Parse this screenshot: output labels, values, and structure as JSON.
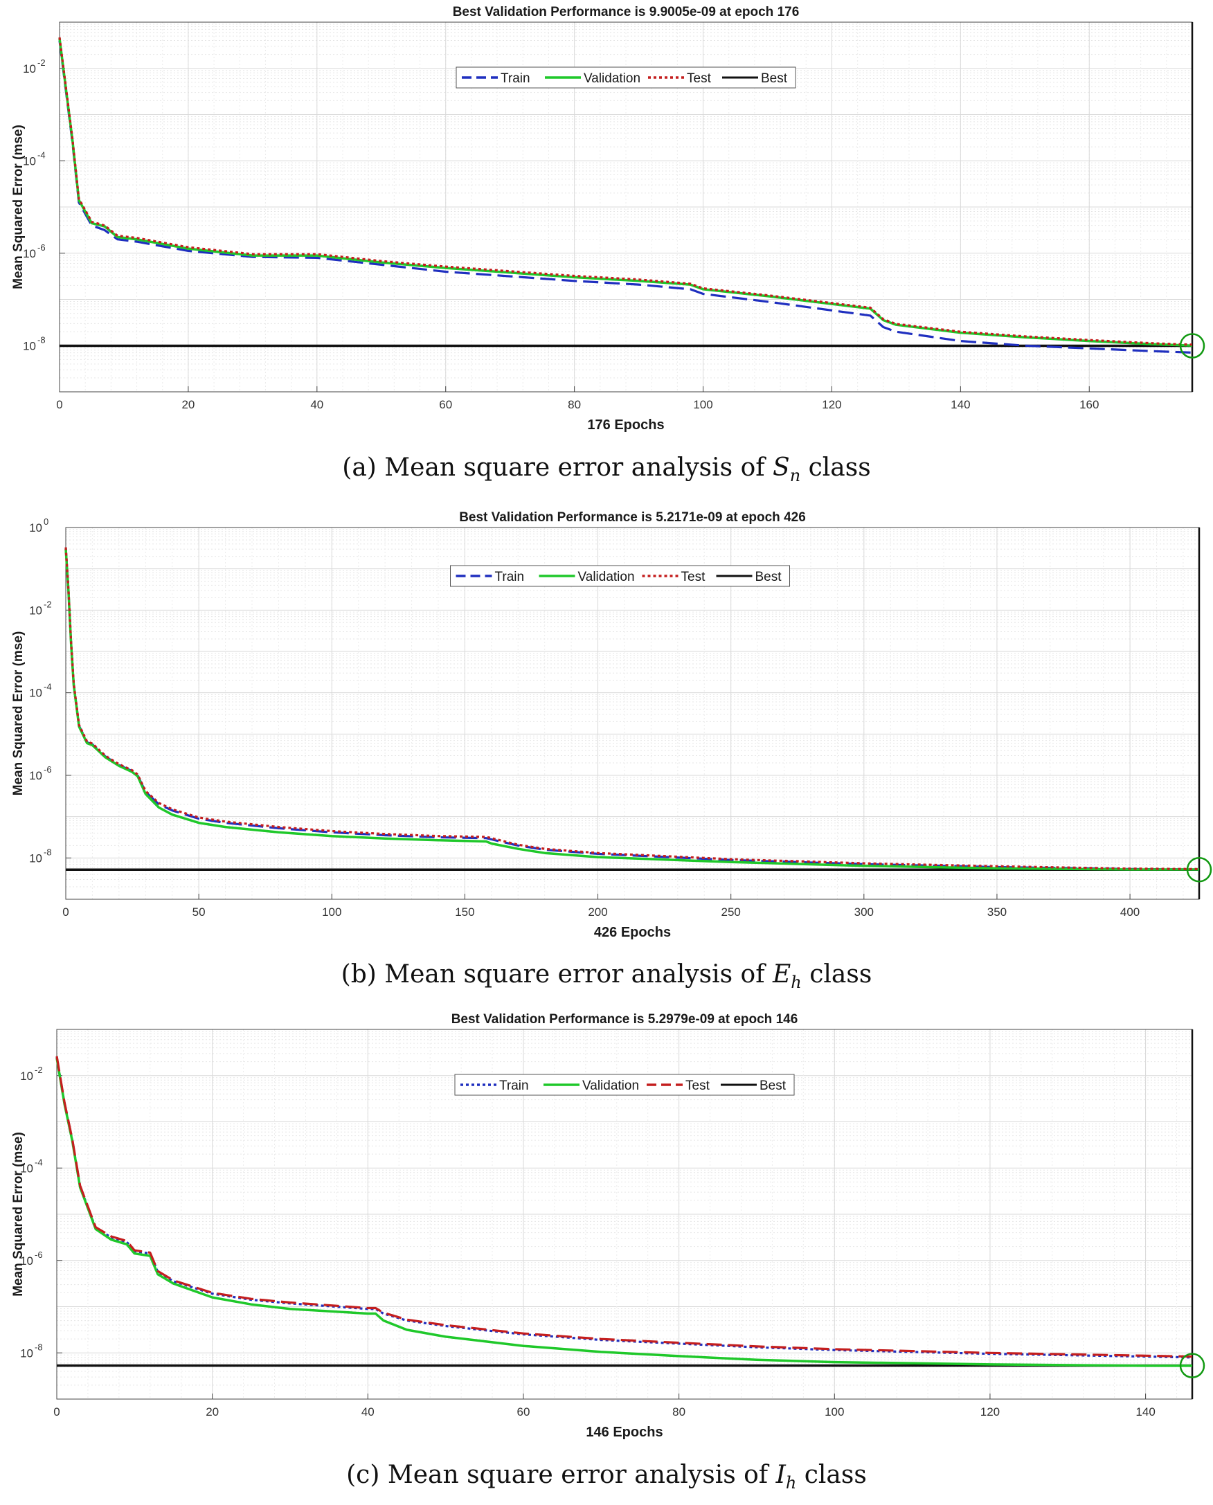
{
  "chart_data": [
    {
      "type": "line",
      "title": "Best Validation Performance is 9.9005e-09 at epoch 176",
      "xlabel": "176 Epochs",
      "ylabel": "Mean Squared Error  (mse)",
      "caption": {
        "prefix": "(a)  Mean square error analysis of",
        "var": "S",
        "sub": "n",
        "suffix": "class"
      },
      "xlim": [
        0,
        176
      ],
      "ylim_log10": [
        -9,
        -1
      ],
      "xticks": [
        0,
        20,
        40,
        60,
        80,
        100,
        120,
        140,
        160
      ],
      "yticks": [
        {
          "exp": -2,
          "label": "10",
          "sup": "-2"
        },
        {
          "exp": -4,
          "label": "10",
          "sup": "-4"
        },
        {
          "exp": -6,
          "label": "10",
          "sup": "-6"
        },
        {
          "exp": -8,
          "label": "10",
          "sup": "-8"
        }
      ],
      "best": {
        "epoch": 176,
        "value": 9.9005e-09
      },
      "legend": [
        "Train",
        "Validation",
        "Test",
        "Best"
      ],
      "series": [
        {
          "name": "Train",
          "color": "#1f2fbf",
          "dash": "dashed",
          "x": [
            0,
            1,
            2,
            3,
            5,
            7,
            9,
            12,
            20,
            30,
            40,
            50,
            60,
            70,
            80,
            90,
            98,
            100,
            110,
            126,
            128,
            130,
            140,
            150,
            160,
            170,
            176
          ],
          "log10": [
            -1.4,
            -2.5,
            -3.6,
            -4.9,
            -5.4,
            -5.5,
            -5.7,
            -5.75,
            -5.95,
            -6.08,
            -6.1,
            -6.25,
            -6.4,
            -6.5,
            -6.6,
            -6.68,
            -6.78,
            -6.88,
            -7.05,
            -7.35,
            -7.6,
            -7.7,
            -7.9,
            -8.0,
            -8.06,
            -8.12,
            -8.15
          ]
        },
        {
          "name": "Validation",
          "color": "#1fc82a",
          "dash": "solid",
          "x": [
            0,
            1,
            2,
            3,
            5,
            7,
            9,
            12,
            20,
            30,
            40,
            50,
            60,
            70,
            80,
            90,
            98,
            100,
            110,
            126,
            128,
            130,
            140,
            150,
            160,
            170,
            176
          ],
          "log10": [
            -1.35,
            -2.45,
            -3.55,
            -4.85,
            -5.35,
            -5.42,
            -5.65,
            -5.7,
            -5.9,
            -6.05,
            -6.05,
            -6.2,
            -6.32,
            -6.42,
            -6.52,
            -6.6,
            -6.68,
            -6.78,
            -6.93,
            -7.2,
            -7.45,
            -7.55,
            -7.72,
            -7.82,
            -7.9,
            -7.97,
            -8.0
          ]
        },
        {
          "name": "Test",
          "color": "#c41e1e",
          "dash": "dotted",
          "x": [
            0,
            1,
            2,
            3,
            5,
            7,
            9,
            12,
            20,
            30,
            40,
            50,
            60,
            70,
            80,
            90,
            98,
            100,
            110,
            126,
            128,
            130,
            140,
            150,
            160,
            170,
            176
          ],
          "log10": [
            -1.33,
            -2.42,
            -3.52,
            -4.82,
            -5.32,
            -5.4,
            -5.62,
            -5.67,
            -5.87,
            -6.02,
            -6.02,
            -6.17,
            -6.29,
            -6.39,
            -6.49,
            -6.57,
            -6.66,
            -6.76,
            -6.91,
            -7.18,
            -7.43,
            -7.53,
            -7.7,
            -7.8,
            -7.88,
            -7.95,
            -7.98
          ]
        }
      ]
    },
    {
      "type": "line",
      "title": "Best Validation Performance is 5.2171e-09 at epoch 426",
      "xlabel": "426 Epochs",
      "ylabel": "Mean Squared Error  (mse)",
      "caption": {
        "prefix": "(b)  Mean square error analysis of",
        "var": "E",
        "sub": "h",
        "suffix": "class"
      },
      "xlim": [
        0,
        426
      ],
      "ylim_log10": [
        -9,
        0
      ],
      "xticks": [
        0,
        50,
        100,
        150,
        200,
        250,
        300,
        350,
        400
      ],
      "yticks": [
        {
          "exp": 0,
          "label": "10",
          "sup": "0"
        },
        {
          "exp": -2,
          "label": "10",
          "sup": "-2"
        },
        {
          "exp": -4,
          "label": "10",
          "sup": "-4"
        },
        {
          "exp": -6,
          "label": "10",
          "sup": "-6"
        },
        {
          "exp": -8,
          "label": "10",
          "sup": "-8"
        }
      ],
      "best": {
        "epoch": 426,
        "value": 5.2171e-09
      },
      "legend": [
        "Train",
        "Validation",
        "Test",
        "Best"
      ],
      "series": [
        {
          "name": "Train",
          "color": "#1f2fbf",
          "dash": "dashed",
          "x": [
            0,
            1,
            2,
            3,
            5,
            8,
            10,
            15,
            20,
            25,
            27,
            30,
            35,
            40,
            50,
            60,
            80,
            100,
            120,
            140,
            158,
            160,
            170,
            180,
            200,
            250,
            300,
            350,
            400,
            426
          ],
          "log10": [
            -0.5,
            -1.5,
            -2.8,
            -3.8,
            -4.8,
            -5.2,
            -5.25,
            -5.55,
            -5.75,
            -5.9,
            -6.0,
            -6.4,
            -6.7,
            -6.85,
            -7.05,
            -7.15,
            -7.28,
            -7.38,
            -7.45,
            -7.5,
            -7.52,
            -7.55,
            -7.7,
            -7.8,
            -7.9,
            -8.05,
            -8.15,
            -8.22,
            -8.27,
            -8.28
          ]
        },
        {
          "name": "Validation",
          "color": "#1fc82a",
          "dash": "solid",
          "x": [
            0,
            1,
            2,
            3,
            5,
            8,
            10,
            15,
            20,
            25,
            27,
            30,
            35,
            40,
            50,
            60,
            80,
            100,
            120,
            140,
            158,
            160,
            170,
            180,
            200,
            250,
            300,
            350,
            400,
            426
          ],
          "log10": [
            -0.52,
            -1.52,
            -2.82,
            -3.82,
            -4.82,
            -5.22,
            -5.27,
            -5.57,
            -5.77,
            -5.92,
            -6.02,
            -6.45,
            -6.78,
            -6.95,
            -7.15,
            -7.25,
            -7.38,
            -7.47,
            -7.53,
            -7.57,
            -7.6,
            -7.65,
            -7.78,
            -7.88,
            -7.98,
            -8.1,
            -8.19,
            -8.25,
            -8.28,
            -8.28
          ]
        },
        {
          "name": "Test",
          "color": "#c41e1e",
          "dash": "dotted",
          "x": [
            0,
            1,
            2,
            3,
            5,
            8,
            10,
            15,
            20,
            25,
            27,
            30,
            35,
            40,
            50,
            60,
            80,
            100,
            120,
            140,
            158,
            160,
            170,
            180,
            200,
            250,
            300,
            350,
            400,
            426
          ],
          "log10": [
            -0.48,
            -1.48,
            -2.78,
            -3.78,
            -4.78,
            -5.18,
            -5.23,
            -5.53,
            -5.73,
            -5.88,
            -5.98,
            -6.38,
            -6.67,
            -6.82,
            -7.02,
            -7.12,
            -7.25,
            -7.35,
            -7.42,
            -7.47,
            -7.49,
            -7.52,
            -7.68,
            -7.78,
            -7.88,
            -8.03,
            -8.13,
            -8.2,
            -8.26,
            -8.27
          ]
        }
      ]
    },
    {
      "type": "line",
      "title": "Best Validation Performance is 5.2979e-09 at epoch 146",
      "xlabel": "146 Epochs",
      "ylabel": "Mean Squared Error  (mse)",
      "caption": {
        "prefix": "(c)  Mean square error analysis of",
        "var": "I",
        "sub": "h",
        "suffix": "class"
      },
      "xlim": [
        0,
        146
      ],
      "ylim_log10": [
        -9,
        -1
      ],
      "xticks": [
        0,
        20,
        40,
        60,
        80,
        100,
        120,
        140
      ],
      "yticks": [
        {
          "exp": -2,
          "label": "10",
          "sup": "-2"
        },
        {
          "exp": -4,
          "label": "10",
          "sup": "-4"
        },
        {
          "exp": -6,
          "label": "10",
          "sup": "-6"
        },
        {
          "exp": -8,
          "label": "10",
          "sup": "-8"
        }
      ],
      "best": {
        "epoch": 146,
        "value": 5.2979e-09
      },
      "legend": [
        "Train",
        "Validation",
        "Test",
        "Best"
      ],
      "series": [
        {
          "name": "Train",
          "color": "#1f2fbf",
          "dash": "dotted",
          "x": [
            0,
            1,
            2,
            3,
            5,
            7,
            9,
            10,
            12,
            13,
            15,
            20,
            25,
            30,
            40,
            41,
            42,
            45,
            50,
            60,
            70,
            80,
            90,
            100,
            120,
            140,
            146
          ],
          "log10": [
            -1.6,
            -2.6,
            -3.4,
            -4.4,
            -5.3,
            -5.5,
            -5.6,
            -5.8,
            -5.85,
            -6.25,
            -6.45,
            -6.72,
            -6.85,
            -6.93,
            -7.05,
            -7.05,
            -7.15,
            -7.3,
            -7.42,
            -7.6,
            -7.72,
            -7.8,
            -7.88,
            -7.94,
            -8.02,
            -8.08,
            -8.1
          ]
        },
        {
          "name": "Validation",
          "color": "#1fc82a",
          "dash": "solid",
          "x": [
            0,
            1,
            2,
            3,
            5,
            7,
            9,
            10,
            12,
            13,
            15,
            20,
            25,
            30,
            40,
            41,
            42,
            45,
            50,
            60,
            70,
            80,
            90,
            100,
            120,
            140,
            146
          ],
          "log10": [
            -1.62,
            -2.62,
            -3.42,
            -4.42,
            -5.32,
            -5.55,
            -5.65,
            -5.85,
            -5.9,
            -6.3,
            -6.5,
            -6.8,
            -6.95,
            -7.05,
            -7.15,
            -7.15,
            -7.3,
            -7.5,
            -7.65,
            -7.85,
            -7.98,
            -8.07,
            -8.15,
            -8.2,
            -8.25,
            -8.28,
            -8.28
          ]
        },
        {
          "name": "Test",
          "color": "#c41e1e",
          "dash": "dashed",
          "x": [
            0,
            1,
            2,
            3,
            5,
            7,
            9,
            10,
            12,
            13,
            15,
            20,
            25,
            30,
            40,
            41,
            42,
            45,
            50,
            60,
            70,
            80,
            90,
            100,
            120,
            140,
            146
          ],
          "log10": [
            -1.58,
            -2.58,
            -3.38,
            -4.38,
            -5.28,
            -5.48,
            -5.58,
            -5.78,
            -5.83,
            -6.23,
            -6.43,
            -6.7,
            -6.83,
            -6.91,
            -7.03,
            -7.03,
            -7.13,
            -7.28,
            -7.4,
            -7.58,
            -7.7,
            -7.78,
            -7.86,
            -7.92,
            -8.0,
            -8.06,
            -8.08
          ]
        }
      ]
    }
  ]
}
